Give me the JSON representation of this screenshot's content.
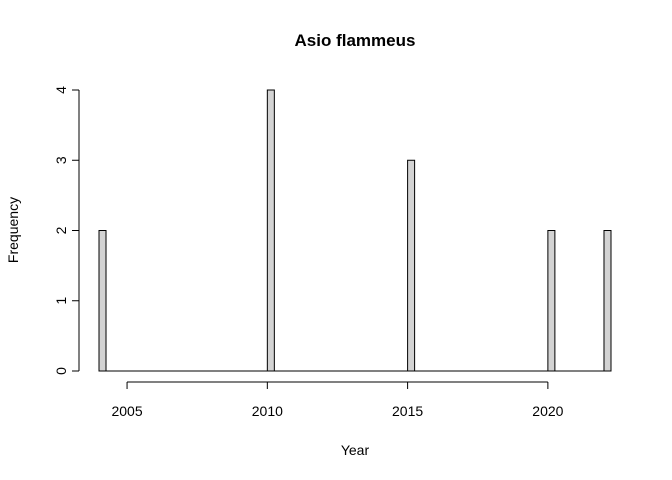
{
  "chart_data": {
    "type": "bar",
    "title": "Asio flammeus",
    "xlabel": "Year",
    "ylabel": "Frequency",
    "x_range": [
      2004,
      2022
    ],
    "ylim": [
      0,
      4
    ],
    "bins": [
      {
        "year": 2004,
        "count": 2
      },
      {
        "year": 2010,
        "count": 4
      },
      {
        "year": 2015,
        "count": 3
      },
      {
        "year": 2020,
        "count": 2
      },
      {
        "year": 2022,
        "count": 2
      }
    ],
    "x_ticks": [
      "2005",
      "2010",
      "2015",
      "2020"
    ],
    "y_ticks": [
      "0",
      "1",
      "2",
      "3",
      "4"
    ],
    "bar_color": "#d3d3d3",
    "grid": false,
    "legend": "none"
  }
}
